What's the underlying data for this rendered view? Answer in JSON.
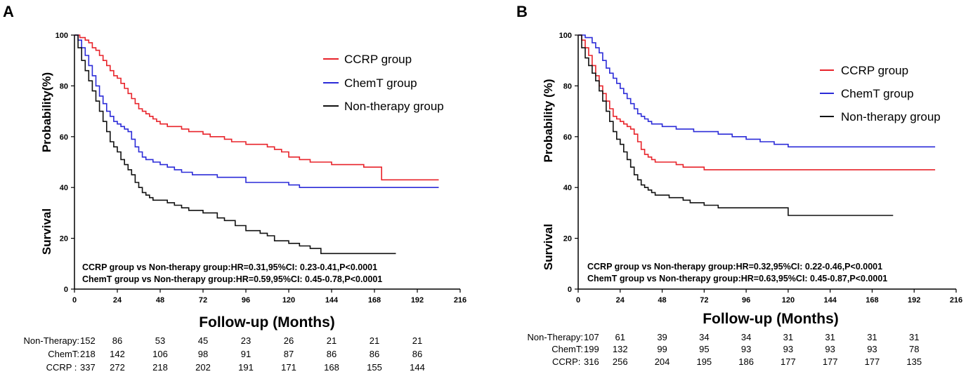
{
  "chart_data": [
    {
      "type": "line",
      "step": true,
      "panel_label": "A",
      "ylabel_parts": [
        "Survival",
        "Probability(%)"
      ],
      "xlabel": "Follow-up (Months)",
      "xlim": [
        0,
        216
      ],
      "ylim": [
        0,
        100
      ],
      "xticks": [
        0,
        24,
        48,
        72,
        96,
        120,
        144,
        168,
        192,
        216
      ],
      "yticks": [
        0,
        20,
        40,
        60,
        80,
        100
      ],
      "legend_position": "top-right",
      "series": [
        {
          "name": "CCRP group",
          "color": "#e8232a",
          "x": [
            0,
            3,
            6,
            8,
            10,
            12,
            14,
            16,
            18,
            20,
            22,
            24,
            26,
            28,
            30,
            32,
            34,
            36,
            38,
            40,
            42,
            44,
            46,
            48,
            52,
            56,
            60,
            64,
            68,
            72,
            76,
            80,
            84,
            88,
            92,
            96,
            104,
            108,
            112,
            116,
            120,
            126,
            132,
            138,
            144,
            150,
            156,
            162,
            168,
            172,
            180,
            192,
            204
          ],
          "y": [
            100,
            99,
            98,
            97,
            95,
            94,
            92,
            90,
            88,
            86,
            84,
            83,
            81,
            79,
            77,
            75,
            73,
            71,
            70,
            69,
            68,
            67,
            66,
            65,
            64,
            64,
            63,
            62,
            62,
            61,
            60,
            60,
            59,
            58,
            58,
            57,
            57,
            56,
            55,
            54,
            52,
            51,
            50,
            50,
            49,
            49,
            49,
            48,
            48,
            43,
            43,
            43,
            43
          ]
        },
        {
          "name": "ChemT group",
          "color": "#2b2bd8",
          "x": [
            0,
            2,
            4,
            6,
            8,
            10,
            12,
            14,
            16,
            18,
            20,
            22,
            24,
            26,
            28,
            30,
            32,
            34,
            36,
            38,
            40,
            44,
            48,
            52,
            56,
            60,
            66,
            72,
            80,
            88,
            96,
            104,
            112,
            120,
            126,
            132,
            144,
            168,
            192,
            204
          ],
          "y": [
            100,
            98,
            95,
            92,
            88,
            84,
            80,
            76,
            73,
            70,
            68,
            66,
            65,
            64,
            63,
            62,
            59,
            56,
            54,
            52,
            51,
            50,
            49,
            48,
            47,
            46,
            45,
            45,
            44,
            44,
            42,
            42,
            42,
            41,
            40,
            40,
            40,
            40,
            40,
            40
          ]
        },
        {
          "name": "Non-therapy group",
          "color": "#111111",
          "x": [
            0,
            2,
            4,
            6,
            8,
            10,
            12,
            14,
            16,
            18,
            20,
            22,
            24,
            26,
            28,
            30,
            32,
            34,
            36,
            38,
            40,
            42,
            44,
            48,
            52,
            56,
            60,
            64,
            72,
            80,
            84,
            90,
            96,
            104,
            108,
            112,
            120,
            126,
            132,
            138,
            144,
            156,
            168,
            180
          ],
          "y": [
            100,
            95,
            90,
            86,
            82,
            78,
            74,
            70,
            66,
            62,
            58,
            56,
            54,
            51,
            49,
            47,
            45,
            42,
            40,
            38,
            37,
            36,
            35,
            35,
            34,
            33,
            32,
            31,
            30,
            28,
            27,
            25,
            23,
            22,
            21,
            19,
            18,
            17,
            16,
            14,
            14,
            14,
            14,
            14
          ]
        }
      ],
      "annotations": [
        "CCRP  group vs Non-therapy group:HR=0.31,95%CI: 0.23-0.41,P<0.0001",
        "ChemT group vs Non-therapy group:HR=0.59,95%CI: 0.45-0.78,P<0.0001"
      ],
      "risk_table": {
        "times": [
          0,
          24,
          48,
          72,
          96,
          120,
          144,
          168,
          192
        ],
        "rows": [
          {
            "label": "Non-Therapy:",
            "values": [
              "152",
              "86",
              "53",
              "45",
              "23",
              "26",
              "21",
              "21",
              "21"
            ]
          },
          {
            "label": "ChemT:",
            "values": [
              "218",
              "142",
              "106",
              "98",
              "91",
              "87",
              "86",
              "86",
              "86"
            ]
          },
          {
            "label": "CCRP : ",
            "values": [
              "337",
              "272",
              "218",
              "202",
              "191",
              "171",
              "168",
              "155",
              "144"
            ]
          }
        ]
      }
    },
    {
      "type": "line",
      "step": true,
      "panel_label": "B",
      "ylabel_parts": [
        "Survival",
        "Probability (%)"
      ],
      "xlabel": "Follow-up (Months)",
      "xlim": [
        0,
        216
      ],
      "ylim": [
        0,
        100
      ],
      "xticks": [
        0,
        24,
        48,
        72,
        96,
        120,
        144,
        168,
        192,
        216
      ],
      "yticks": [
        0,
        20,
        40,
        60,
        80,
        100
      ],
      "legend_position": "top-right",
      "series": [
        {
          "name": "CCRP group",
          "color": "#e8232a",
          "x": [
            0,
            2,
            4,
            6,
            8,
            10,
            12,
            14,
            16,
            18,
            20,
            22,
            24,
            26,
            28,
            30,
            32,
            34,
            36,
            38,
            40,
            42,
            44,
            48,
            56,
            60,
            66,
            72,
            76,
            84,
            96,
            120,
            144,
            168,
            192,
            204
          ],
          "y": [
            100,
            98,
            95,
            92,
            88,
            84,
            80,
            77,
            74,
            71,
            68,
            67,
            66,
            65,
            64,
            63,
            61,
            58,
            55,
            53,
            52,
            51,
            50,
            50,
            49,
            48,
            48,
            47,
            47,
            47,
            47,
            47,
            47,
            47,
            47,
            47
          ],
          "end_x": 204
        },
        {
          "name": "ChemT group",
          "color": "#2b2bd8",
          "x": [
            0,
            4,
            8,
            10,
            12,
            14,
            16,
            18,
            20,
            22,
            24,
            26,
            28,
            30,
            32,
            34,
            36,
            38,
            40,
            42,
            44,
            48,
            56,
            60,
            66,
            72,
            80,
            88,
            96,
            104,
            112,
            120,
            144,
            168,
            192,
            204
          ],
          "y": [
            100,
            99,
            97,
            95,
            93,
            90,
            87,
            85,
            83,
            81,
            79,
            77,
            75,
            73,
            71,
            69,
            68,
            67,
            66,
            65,
            65,
            64,
            63,
            63,
            62,
            62,
            61,
            60,
            59,
            58,
            57,
            56,
            56,
            56,
            56,
            56
          ]
        },
        {
          "name": "Non-therapy group",
          "color": "#111111",
          "x": [
            0,
            2,
            4,
            6,
            8,
            10,
            12,
            14,
            16,
            18,
            20,
            22,
            24,
            26,
            28,
            30,
            32,
            34,
            36,
            38,
            40,
            42,
            44,
            48,
            52,
            56,
            60,
            64,
            72,
            80,
            96,
            108,
            120,
            144,
            168,
            180
          ],
          "y": [
            100,
            95,
            91,
            88,
            85,
            82,
            78,
            74,
            70,
            66,
            62,
            59,
            57,
            54,
            51,
            48,
            45,
            43,
            41,
            40,
            39,
            38,
            37,
            37,
            36,
            36,
            35,
            34,
            33,
            32,
            32,
            32,
            29,
            29,
            29,
            29
          ]
        }
      ],
      "annotations": [
        "CCRP  group vs Non-therapy group:HR=0.32,95%CI: 0.22-0.46,P<0.0001",
        "ChemT group vs Non-therapy group:HR=0.63,95%CI: 0.45-0.87,P<0.0001"
      ],
      "risk_table": {
        "times": [
          0,
          24,
          48,
          72,
          96,
          120,
          144,
          168,
          192
        ],
        "rows": [
          {
            "label": "Non-Therapy:",
            "values": [
              "107",
              "61",
              "39",
              "34",
              "34",
              "31",
              "31",
              "31",
              "31"
            ]
          },
          {
            "label": "ChemT:",
            "values": [
              "199",
              "132",
              "99",
              "95",
              "93",
              "93",
              "93",
              "93",
              "78"
            ]
          },
          {
            "label": "CCRP: ",
            "values": [
              "316",
              "256",
              "204",
              "195",
              "186",
              "177",
              "177",
              "177",
              "135"
            ]
          }
        ]
      }
    }
  ]
}
